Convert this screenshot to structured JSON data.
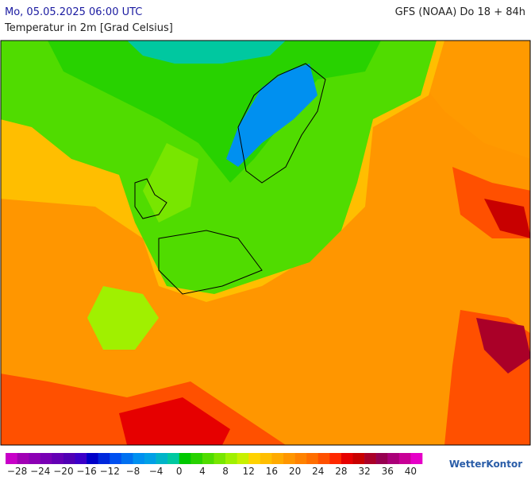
{
  "header": {
    "title": "Mo, 05.05.2025 06:00 UTC",
    "model": "GFS (NOAA) Do 18 + 84h",
    "subtitle": "Temperatur in 2m [Grad Celsius]"
  },
  "colorbar": {
    "range": [
      -30,
      42
    ],
    "colors": [
      "#c800c8",
      "#a000b4",
      "#8c00b4",
      "#7800b4",
      "#6400b4",
      "#5000b4",
      "#3c00c8",
      "#0000c8",
      "#0028dc",
      "#0050f0",
      "#0070f0",
      "#0090f0",
      "#00a0e6",
      "#00b4c8",
      "#00c8a0",
      "#00c800",
      "#28d200",
      "#50dc00",
      "#78e600",
      "#a0f000",
      "#c8f000",
      "#ffd200",
      "#ffbe00",
      "#ffaa00",
      "#ff9600",
      "#ff8200",
      "#ff6e00",
      "#ff5000",
      "#ff2800",
      "#e60000",
      "#c80000",
      "#aa0028",
      "#960050",
      "#aa0078",
      "#c80096",
      "#e600c8"
    ],
    "ticks": [
      {
        "value": -28,
        "label": "−28"
      },
      {
        "value": -24,
        "label": "−24"
      },
      {
        "value": -20,
        "label": "−20"
      },
      {
        "value": -16,
        "label": "−16"
      },
      {
        "value": -12,
        "label": "−12"
      },
      {
        "value": -8,
        "label": "−8"
      },
      {
        "value": -4,
        "label": "−4"
      },
      0,
      4,
      8,
      12,
      16,
      20,
      24,
      28,
      32,
      36,
      40
    ]
  },
  "brand": "WetterKontor"
}
